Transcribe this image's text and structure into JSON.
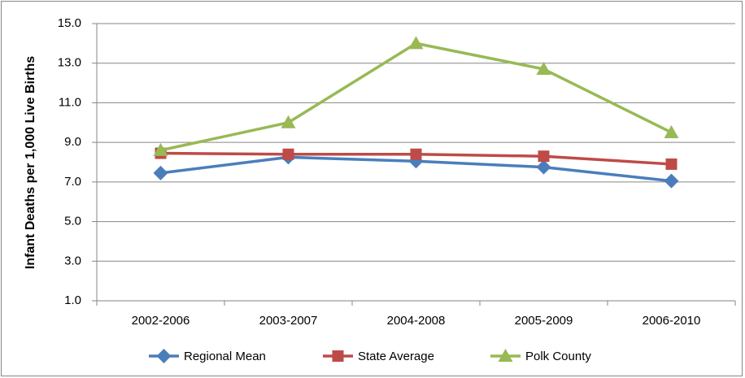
{
  "chart_data": {
    "type": "line",
    "y_label": "Infant Deaths per 1,000 Live Births",
    "categories": [
      "2002-2006",
      "2003-2007",
      "2004-2008",
      "2005-2009",
      "2006-2010"
    ],
    "series": [
      {
        "name": "Regional Mean",
        "color": "#4a7ebb",
        "marker": "diamond",
        "values": [
          7.45,
          8.25,
          8.05,
          7.75,
          7.05
        ]
      },
      {
        "name": "State Average",
        "color": "#be4b48",
        "marker": "square",
        "values": [
          8.45,
          8.4,
          8.4,
          8.3,
          7.9
        ]
      },
      {
        "name": "Polk County",
        "color": "#98b954",
        "marker": "triangle",
        "values": [
          8.6,
          10.0,
          14.0,
          12.7,
          9.5
        ]
      }
    ],
    "ylim": [
      1,
      15
    ],
    "yticks": [
      {
        "value": 1,
        "label": "1.0"
      },
      {
        "value": 3,
        "label": "3.0"
      },
      {
        "value": 5,
        "label": "5.0"
      },
      {
        "value": 7,
        "label": "7.0"
      },
      {
        "value": 9,
        "label": "9.0"
      },
      {
        "value": 11,
        "label": "11.0"
      },
      {
        "value": 13,
        "label": "13.0"
      },
      {
        "value": 15,
        "label": "15.0"
      }
    ],
    "grid": true,
    "legend": "bottom"
  }
}
